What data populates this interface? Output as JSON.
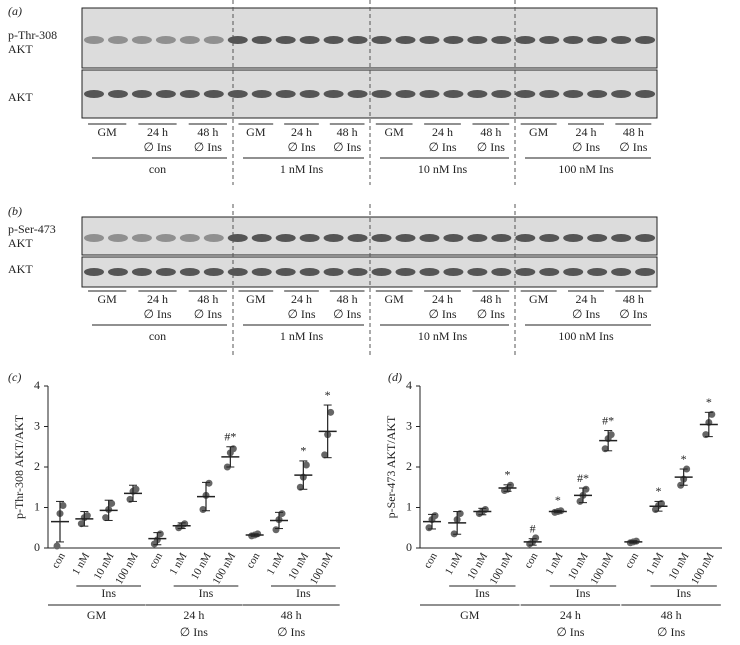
{
  "blots": [
    {
      "label": "(a)",
      "rows": [
        {
          "lines": [
            "p-Thr-308",
            "AKT"
          ]
        },
        {
          "lines": [
            "AKT"
          ]
        }
      ],
      "conditions": [
        {
          "top": "GM"
        },
        {
          "top": "24 h",
          "bottom": "∅ Ins"
        },
        {
          "top": "48 h",
          "bottom": "∅ Ins"
        }
      ],
      "groups": [
        "con",
        "1 nM Ins",
        "10 nM Ins",
        "100 nM Ins"
      ]
    },
    {
      "label": "(b)",
      "rows": [
        {
          "lines": [
            "p-Ser-473",
            "AKT"
          ]
        },
        {
          "lines": [
            "AKT"
          ]
        }
      ],
      "conditions": [
        {
          "top": "GM"
        },
        {
          "top": "24 h",
          "bottom": "∅ Ins"
        },
        {
          "top": "48 h",
          "bottom": "∅ Ins"
        }
      ],
      "groups": [
        "con",
        "1 nM Ins",
        "10 nM Ins",
        "100 nM Ins"
      ]
    }
  ],
  "chart_data": [
    {
      "type": "dot",
      "label": "(c)",
      "ylabel": "p-Thr-308 AKT/AKT",
      "color": "#666666",
      "categories": [
        "con",
        "1 nM",
        "10 nM",
        "100 nM",
        "con",
        "1 nM",
        "10 nM",
        "100 nM",
        "con",
        "1 nM",
        "10 nM",
        "100 nM"
      ],
      "treatment": "Ins",
      "groups": [
        {
          "top": "GM"
        },
        {
          "top": "24 h",
          "bottom": "∅ Ins"
        },
        {
          "top": "48 h",
          "bottom": "∅ Ins"
        }
      ],
      "values": [
        0.65,
        0.72,
        0.93,
        1.35,
        0.23,
        0.55,
        1.27,
        2.25,
        0.32,
        0.68,
        1.8,
        2.88
      ],
      "errors": [
        0.5,
        0.18,
        0.25,
        0.2,
        0.15,
        0.07,
        0.35,
        0.25,
        0.03,
        0.2,
        0.35,
        0.65
      ],
      "points": [
        [
          0.05,
          0.85,
          1.05
        ],
        [
          0.6,
          0.75,
          0.8
        ],
        [
          0.75,
          0.95,
          1.1
        ],
        [
          1.2,
          1.4,
          1.45
        ],
        [
          0.1,
          0.2,
          0.35
        ],
        [
          0.5,
          0.55,
          0.6
        ],
        [
          0.95,
          1.3,
          1.6
        ],
        [
          2.0,
          2.35,
          2.45
        ],
        [
          0.3,
          0.32,
          0.35
        ],
        [
          0.45,
          0.7,
          0.85
        ],
        [
          1.5,
          1.75,
          2.05
        ],
        [
          2.3,
          2.8,
          3.35
        ]
      ],
      "annotations": [
        {
          "index": 7,
          "text": "#*"
        },
        {
          "index": 10,
          "text": "*"
        },
        {
          "index": 11,
          "text": "*"
        }
      ],
      "ylim": [
        0,
        4
      ],
      "yticks": [
        0,
        1,
        2,
        3,
        4
      ]
    },
    {
      "type": "dot",
      "label": "(d)",
      "ylabel": "p-Ser-473 AKT/AKT",
      "color": "#666666",
      "categories": [
        "con",
        "1 nM",
        "10 nM",
        "100 nM",
        "con",
        "1 nM",
        "10 nM",
        "100 nM",
        "con",
        "1 nM",
        "10 nM",
        "100 nM"
      ],
      "treatment": "Ins",
      "groups": [
        {
          "top": "GM"
        },
        {
          "top": "24 h",
          "bottom": "∅ Ins"
        },
        {
          "top": "48 h",
          "bottom": "∅ Ins"
        }
      ],
      "values": [
        0.65,
        0.62,
        0.9,
        1.48,
        0.15,
        0.9,
        1.3,
        2.65,
        0.15,
        1.03,
        1.75,
        3.05
      ],
      "errors": [
        0.18,
        0.28,
        0.08,
        0.08,
        0.08,
        0.03,
        0.18,
        0.25,
        0.03,
        0.12,
        0.2,
        0.3
      ],
      "points": [
        [
          0.5,
          0.7,
          0.8
        ],
        [
          0.35,
          0.7,
          0.85
        ],
        [
          0.85,
          0.9,
          0.95
        ],
        [
          1.42,
          1.45,
          1.55
        ],
        [
          0.1,
          0.15,
          0.25
        ],
        [
          0.88,
          0.9,
          0.92
        ],
        [
          1.15,
          1.3,
          1.45
        ],
        [
          2.45,
          2.7,
          2.8
        ],
        [
          0.13,
          0.15,
          0.17
        ],
        [
          0.95,
          1.05,
          1.1
        ],
        [
          1.55,
          1.7,
          1.95
        ],
        [
          2.8,
          3.1,
          3.3
        ]
      ],
      "annotations": [
        {
          "index": 3,
          "text": "*"
        },
        {
          "index": 4,
          "text": "#"
        },
        {
          "index": 5,
          "text": "*"
        },
        {
          "index": 6,
          "text": "#*"
        },
        {
          "index": 7,
          "text": "#*"
        },
        {
          "index": 9,
          "text": "*"
        },
        {
          "index": 10,
          "text": "*"
        },
        {
          "index": 11,
          "text": "*"
        }
      ],
      "ylim": [
        0,
        4
      ],
      "yticks": [
        0,
        1,
        2,
        3,
        4
      ]
    }
  ]
}
